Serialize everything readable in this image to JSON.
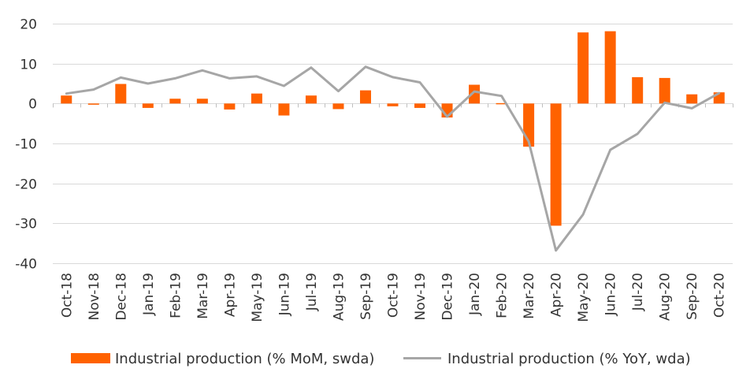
{
  "chart_data": {
    "type": "bar",
    "title": "",
    "xlabel": "",
    "ylabel": "",
    "categories": [
      "Oct-18",
      "Nov-18",
      "Dec-18",
      "Jan-19",
      "Feb-19",
      "Mar-19",
      "Apr-19",
      "May-19",
      "Jun-19",
      "Jul-19",
      "Aug-19",
      "Sep-19",
      "Oct-19",
      "Nov-19",
      "Dec-19",
      "Jan-20",
      "Feb-20",
      "Mar-20",
      "Apr-20",
      "May-20",
      "Jun-20",
      "Jul-20",
      "Aug-20",
      "Sep-20",
      "Oct-20"
    ],
    "ylim": [
      -40,
      20
    ],
    "yticks": [
      20,
      10,
      0,
      -10,
      -20,
      -30,
      -40
    ],
    "grid": true,
    "legend_position": "bottom",
    "series": [
      {
        "name": "Industrial production (% MoM, swda)",
        "type": "bar",
        "color": "#FF6200",
        "values": [
          2.0,
          -0.3,
          4.9,
          -1.1,
          1.2,
          1.2,
          -1.5,
          2.5,
          -3.0,
          2.0,
          -1.4,
          3.3,
          -0.7,
          -1.1,
          -3.5,
          4.7,
          0.1,
          -10.8,
          -30.6,
          17.8,
          18.1,
          6.6,
          6.4,
          2.3,
          2.8
        ]
      },
      {
        "name": "Industrial production (% YoY, wda)",
        "type": "line",
        "color": "#A6A6A6",
        "values": [
          2.5,
          3.5,
          6.5,
          5.0,
          6.3,
          8.3,
          6.3,
          6.8,
          4.4,
          9.0,
          3.1,
          9.2,
          6.6,
          5.3,
          -3.3,
          3.0,
          1.9,
          -9.5,
          -36.8,
          -27.8,
          -11.6,
          -7.6,
          0.2,
          -1.2,
          2.6
        ]
      }
    ]
  }
}
